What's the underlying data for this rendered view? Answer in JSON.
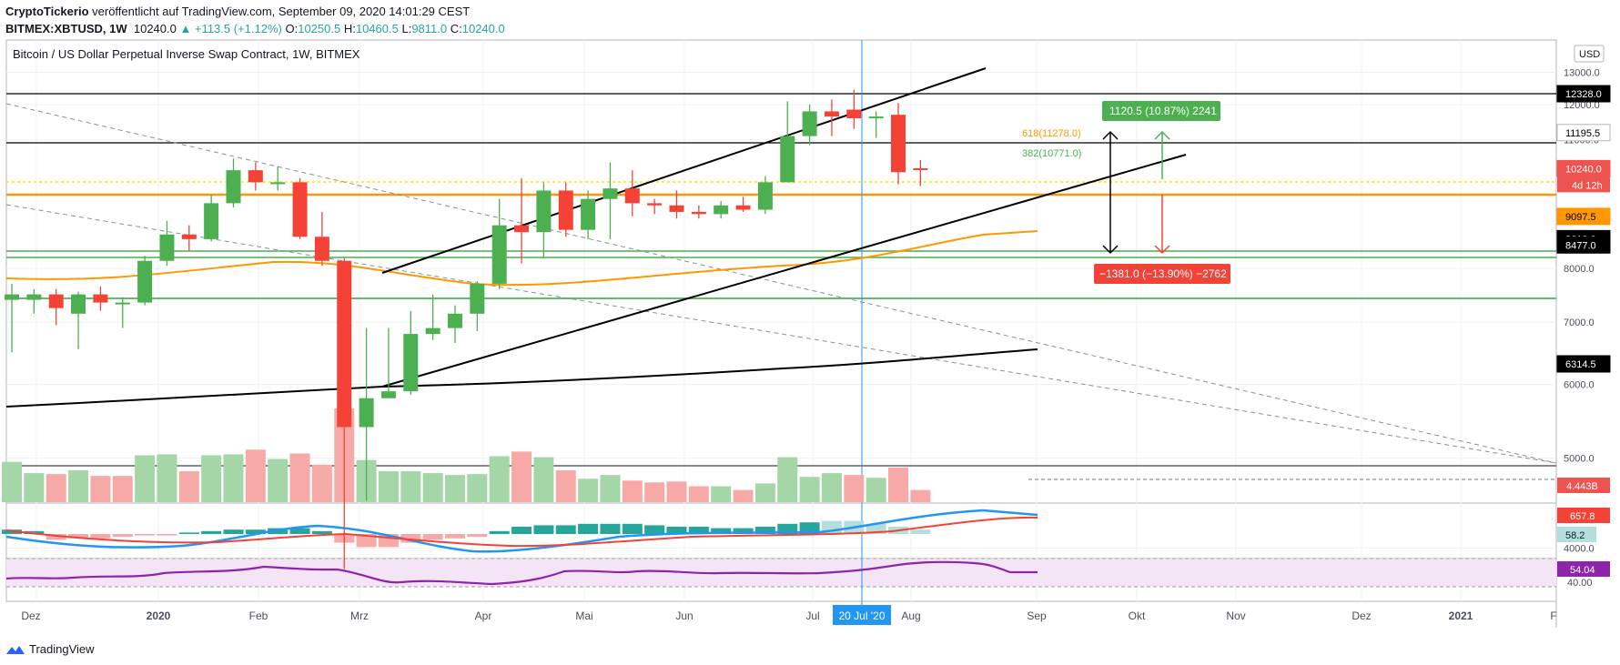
{
  "header": {
    "publisher": "CryptoTickerio",
    "published_text": "veröffentlicht auf TradingView.com, September 09, 2020 14:01:29 CEST",
    "symbol": "BITMEX:XBTUSD, 1W",
    "last": "10240.0",
    "change": "▲ +113.5 (+1.12%)",
    "o_label": "O:",
    "o": "10250.5",
    "h_label": "H:",
    "h": "10460.5",
    "l_label": "L:",
    "l": "9811.0",
    "c_label": "C:",
    "c": "10240.0"
  },
  "footer": {
    "brand": "TradingView"
  },
  "chart_data": {
    "type": "candlestick",
    "title": "Bitcoin / US Dollar Perpetual Inverse Swap Contract, 1W, BITMEX",
    "currency_label": "USD",
    "ylim": [
      3500,
      13500
    ],
    "yscale": "log",
    "y_ticks": [
      4000,
      5000,
      6000,
      7000,
      8000,
      11000,
      12000,
      13000
    ],
    "x_ticks": [
      "Dez",
      "2020",
      "Feb",
      "Mrz",
      "Apr",
      "Mai",
      "Jun",
      "Jul",
      "20 Jul '20",
      "Aug",
      "Sep",
      "Okt",
      "Nov",
      "Dez",
      "2021",
      "F"
    ],
    "candles": [
      {
        "o": 7400,
        "h": 7700,
        "l": 6500,
        "c": 7500
      },
      {
        "o": 7400,
        "h": 7600,
        "l": 7150,
        "c": 7500
      },
      {
        "o": 7500,
        "h": 7600,
        "l": 6950,
        "c": 7250
      },
      {
        "o": 7150,
        "h": 7550,
        "l": 6550,
        "c": 7500
      },
      {
        "o": 7500,
        "h": 7650,
        "l": 7200,
        "c": 7350
      },
      {
        "o": 7350,
        "h": 7450,
        "l": 6900,
        "c": 7350
      },
      {
        "o": 7350,
        "h": 8250,
        "l": 7300,
        "c": 8150
      },
      {
        "o": 8150,
        "h": 9000,
        "l": 8050,
        "c": 8700
      },
      {
        "o": 8700,
        "h": 8900,
        "l": 8350,
        "c": 8600
      },
      {
        "o": 8600,
        "h": 9600,
        "l": 8550,
        "c": 9400
      },
      {
        "o": 9400,
        "h": 10500,
        "l": 9300,
        "c": 10200
      },
      {
        "o": 10200,
        "h": 10400,
        "l": 9700,
        "c": 9900
      },
      {
        "o": 9900,
        "h": 10300,
        "l": 9700,
        "c": 9900
      },
      {
        "o": 9900,
        "h": 10000,
        "l": 8600,
        "c": 8650
      },
      {
        "o": 8650,
        "h": 9200,
        "l": 8050,
        "c": 8150
      },
      {
        "o": 8150,
        "h": 8200,
        "l": 3800,
        "c": 5400
      },
      {
        "o": 5400,
        "h": 6900,
        "l": 4500,
        "c": 5800
      },
      {
        "o": 5800,
        "h": 6900,
        "l": 5800,
        "c": 5900
      },
      {
        "o": 5900,
        "h": 7200,
        "l": 5850,
        "c": 6800
      },
      {
        "o": 6800,
        "h": 7500,
        "l": 6700,
        "c": 6900
      },
      {
        "o": 6900,
        "h": 7300,
        "l": 6650,
        "c": 7150
      },
      {
        "o": 7150,
        "h": 7750,
        "l": 6850,
        "c": 7700
      },
      {
        "o": 7700,
        "h": 9500,
        "l": 7600,
        "c": 8900
      },
      {
        "o": 8900,
        "h": 10000,
        "l": 8100,
        "c": 8750
      },
      {
        "o": 8750,
        "h": 9900,
        "l": 8200,
        "c": 9700
      },
      {
        "o": 9700,
        "h": 9900,
        "l": 8650,
        "c": 8800
      },
      {
        "o": 8800,
        "h": 9700,
        "l": 8600,
        "c": 9500
      },
      {
        "o": 9500,
        "h": 10400,
        "l": 8600,
        "c": 9750
      },
      {
        "o": 9750,
        "h": 10200,
        "l": 9100,
        "c": 9400
      },
      {
        "o": 9400,
        "h": 9500,
        "l": 9150,
        "c": 9350
      },
      {
        "o": 9350,
        "h": 9700,
        "l": 9050,
        "c": 9200
      },
      {
        "o": 9200,
        "h": 9350,
        "l": 9050,
        "c": 9150
      },
      {
        "o": 9150,
        "h": 9450,
        "l": 9050,
        "c": 9350
      },
      {
        "o": 9350,
        "h": 9550,
        "l": 9200,
        "c": 9250
      },
      {
        "o": 9250,
        "h": 10050,
        "l": 9150,
        "c": 9900
      },
      {
        "o": 9900,
        "h": 12100,
        "l": 9900,
        "c": 11100
      },
      {
        "o": 11100,
        "h": 12000,
        "l": 10850,
        "c": 11800
      },
      {
        "o": 11800,
        "h": 12150,
        "l": 11100,
        "c": 11650
      },
      {
        "o": 11850,
        "h": 12450,
        "l": 11300,
        "c": 11600
      },
      {
        "o": 11600,
        "h": 11800,
        "l": 11050,
        "c": 11650
      },
      {
        "o": 11700,
        "h": 12050,
        "l": 9850,
        "c": 10150
      },
      {
        "o": 10250,
        "h": 10460,
        "l": 9811,
        "c": 10240
      }
    ],
    "volume": [
      {
        "v": 4.3,
        "up": true
      },
      {
        "v": 3.1,
        "up": true
      },
      {
        "v": 3.0,
        "up": false
      },
      {
        "v": 3.4,
        "up": true
      },
      {
        "v": 2.8,
        "up": false
      },
      {
        "v": 2.8,
        "up": false
      },
      {
        "v": 5.0,
        "up": true
      },
      {
        "v": 5.1,
        "up": true
      },
      {
        "v": 3.3,
        "up": false
      },
      {
        "v": 5.0,
        "up": true
      },
      {
        "v": 5.1,
        "up": true
      },
      {
        "v": 5.6,
        "up": false
      },
      {
        "v": 4.6,
        "up": true
      },
      {
        "v": 5.2,
        "up": false
      },
      {
        "v": 4.0,
        "up": false
      },
      {
        "v": 10.0,
        "up": false
      },
      {
        "v": 4.5,
        "up": true
      },
      {
        "v": 3.3,
        "up": true
      },
      {
        "v": 3.3,
        "up": true
      },
      {
        "v": 3.1,
        "up": true
      },
      {
        "v": 2.9,
        "up": true
      },
      {
        "v": 3.0,
        "up": true
      },
      {
        "v": 4.9,
        "up": true
      },
      {
        "v": 5.4,
        "up": false
      },
      {
        "v": 4.8,
        "up": true
      },
      {
        "v": 3.4,
        "up": false
      },
      {
        "v": 2.5,
        "up": true
      },
      {
        "v": 2.9,
        "up": true
      },
      {
        "v": 2.3,
        "up": false
      },
      {
        "v": 2.1,
        "up": false
      },
      {
        "v": 2.2,
        "up": false
      },
      {
        "v": 1.7,
        "up": false
      },
      {
        "v": 1.7,
        "up": true
      },
      {
        "v": 1.3,
        "up": false
      },
      {
        "v": 2.0,
        "up": true
      },
      {
        "v": 4.8,
        "up": true
      },
      {
        "v": 2.7,
        "up": true
      },
      {
        "v": 3.1,
        "up": true
      },
      {
        "v": 2.9,
        "up": false
      },
      {
        "v": 2.6,
        "up": true
      },
      {
        "v": 3.7,
        "up": false
      },
      {
        "v": 1.3,
        "up": false
      }
    ],
    "price_labels": [
      {
        "value": 12328.0,
        "text": "12328.0",
        "bg": "#000000",
        "fg": "#ffffff"
      },
      {
        "value": 11195.5,
        "text": "11195.5",
        "bg": "#ffffff",
        "fg": "#000000"
      },
      {
        "value": 10240.0,
        "text": "10240.0",
        "bg": "#ef5350",
        "fg": "#ffffff"
      },
      {
        "value": 9097.5,
        "text": "9097.5",
        "bg": "#ff9800",
        "fg": "#000000"
      },
      {
        "value": 8610.0,
        "text": "8610.0",
        "bg": "#000000",
        "fg": "#ffffff"
      },
      {
        "value": 8477.0,
        "text": "8477.0",
        "bg": "#000000",
        "fg": "#ffffff"
      },
      {
        "value": 6314.5,
        "text": "6314.5",
        "bg": "#000000",
        "fg": "#ffffff"
      }
    ],
    "countdown": "4d 12h",
    "volume_label": "4.443B",
    "macd_labels": [
      "657.8",
      "58.2"
    ],
    "rsi_labels": [
      "54.04",
      "40.00"
    ],
    "fib_labels": [
      "618(11278.0)",
      "382(10771.0)"
    ],
    "measure_up": "1120.5 (10.87%) 2241",
    "measure_down": "−1381.0 (−13.90%) −2762",
    "colors": {
      "up": "#4caf50",
      "down": "#f44336",
      "vol_up": "#a5d6a7",
      "vol_down": "#f7a9a7",
      "ma_orange": "#ff9800",
      "rsi": "#8e24aa"
    }
  }
}
